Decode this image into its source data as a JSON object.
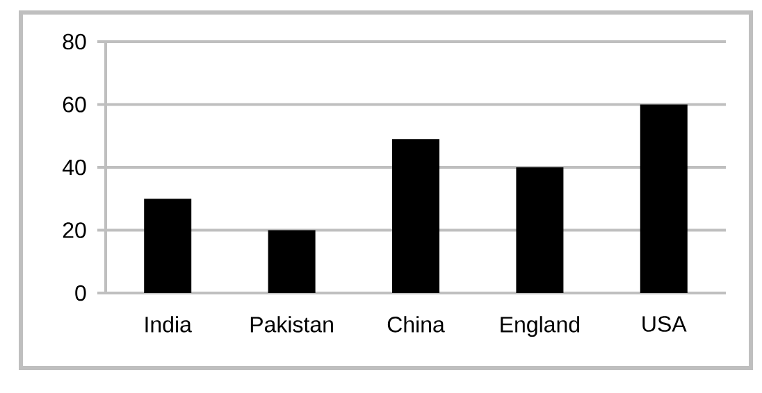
{
  "chart_data": {
    "type": "bar",
    "categories": [
      "India",
      "Pakistan",
      "China",
      "England",
      "USA"
    ],
    "values": [
      30,
      20,
      49,
      40,
      60
    ],
    "color": "#000000",
    "ylim": [
      0,
      80
    ],
    "yticks": [
      0,
      20,
      40,
      60,
      80
    ],
    "grid": "y"
  }
}
